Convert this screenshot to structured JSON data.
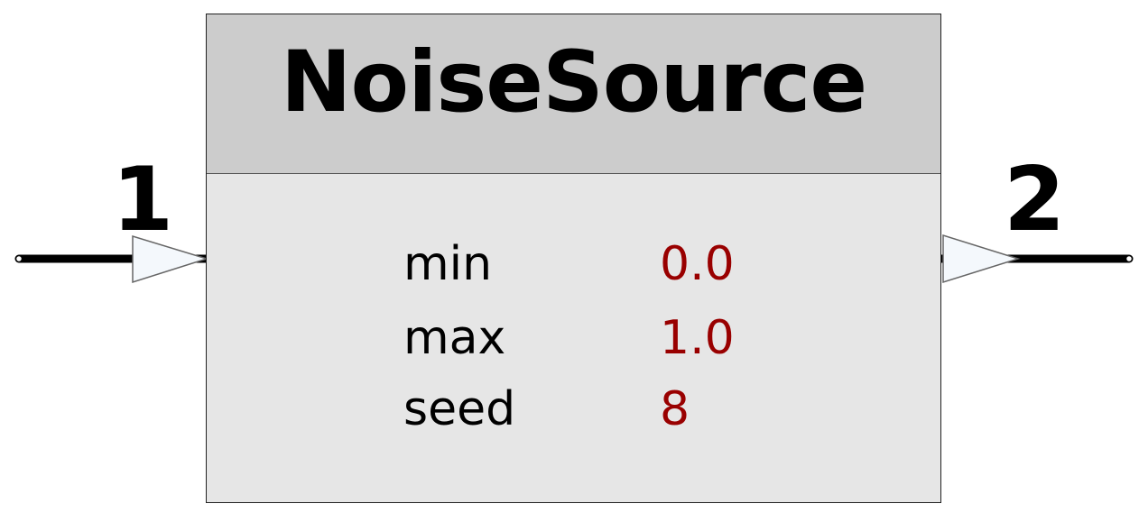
{
  "block": {
    "title": "NoiseSource",
    "params": [
      {
        "name": "min",
        "value": "0.0"
      },
      {
        "name": "max",
        "value": "1.0"
      },
      {
        "name": "seed",
        "value": "8"
      }
    ]
  },
  "ports": {
    "input": {
      "label": "1"
    },
    "output": {
      "label": "2"
    }
  },
  "colors": {
    "header_bg": "#cccccc",
    "body_bg": "#e6e6e6",
    "param_value": "#990000",
    "port_fill": "#f4f8fc",
    "wire": "#000000"
  }
}
